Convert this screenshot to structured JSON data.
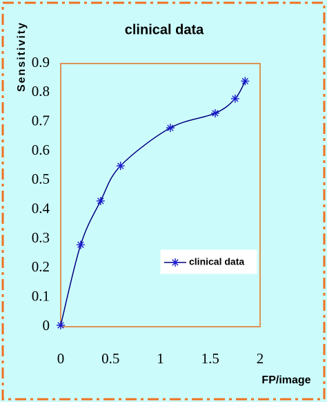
{
  "chart_data": {
    "type": "line",
    "title": "clinical data",
    "x_label": "FP/image",
    "y_label": "Sensitivity",
    "x": [
      0,
      0.2,
      0.4,
      0.6,
      1.1,
      1.55,
      1.75,
      1.85
    ],
    "series": [
      {
        "name": "clinical data",
        "color": "#1a1acc",
        "values": [
          0.005,
          0.28,
          0.43,
          0.55,
          0.68,
          0.73,
          0.78,
          0.84
        ]
      }
    ],
    "xlim": [
      0,
      2
    ],
    "xticks": [
      0,
      0.5,
      1,
      1.5,
      2
    ],
    "ylim": [
      0,
      0.9
    ],
    "yticks": [
      0,
      0.1,
      0.2,
      0.3,
      0.4,
      0.5,
      0.6,
      0.7,
      0.8,
      0.9
    ],
    "grid": false,
    "smooth": true,
    "legend": "lower right"
  }
}
